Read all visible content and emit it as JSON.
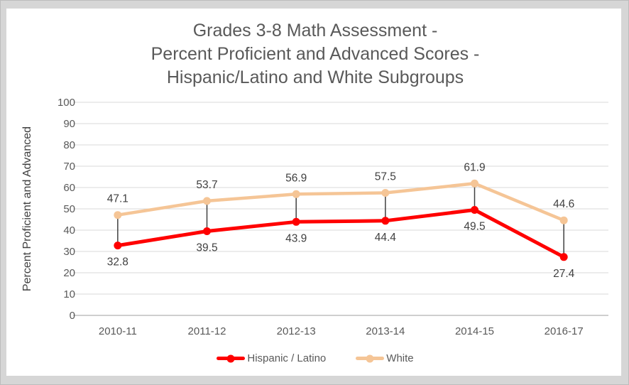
{
  "chart_data": {
    "type": "line",
    "title_lines": [
      "Grades 3-8 Math Assessment -",
      "Percent Proficient and Advanced Scores -",
      "Hispanic/Latino and White Subgroups"
    ],
    "ylabel": "Percent Proficient and Advanced",
    "categories": [
      "2010-11",
      "2011-12",
      "2012-13",
      "2013-14",
      "2014-15",
      "2016-17"
    ],
    "series": [
      {
        "name": "Hispanic / Latino",
        "color": "#ff0000",
        "values": [
          32.8,
          39.5,
          43.9,
          44.4,
          49.5,
          27.4
        ],
        "label_position": "below"
      },
      {
        "name": "White",
        "color": "#f5c596",
        "values": [
          47.1,
          53.7,
          56.9,
          57.5,
          61.9,
          44.6
        ],
        "label_position": "above"
      }
    ],
    "ylim": [
      0,
      100
    ],
    "ytick_step": 10,
    "grid": true,
    "high_low_lines": true,
    "legend_position": "bottom"
  },
  "colors": {
    "background": "#ffffff",
    "frame": "#d6d6d6",
    "gridline": "#d9d9d9",
    "axis_line": "#bfbfbf",
    "axis_text": "#595959",
    "data_label_text": "#404040",
    "high_low_line": "#404040",
    "title_text": "#595959"
  }
}
